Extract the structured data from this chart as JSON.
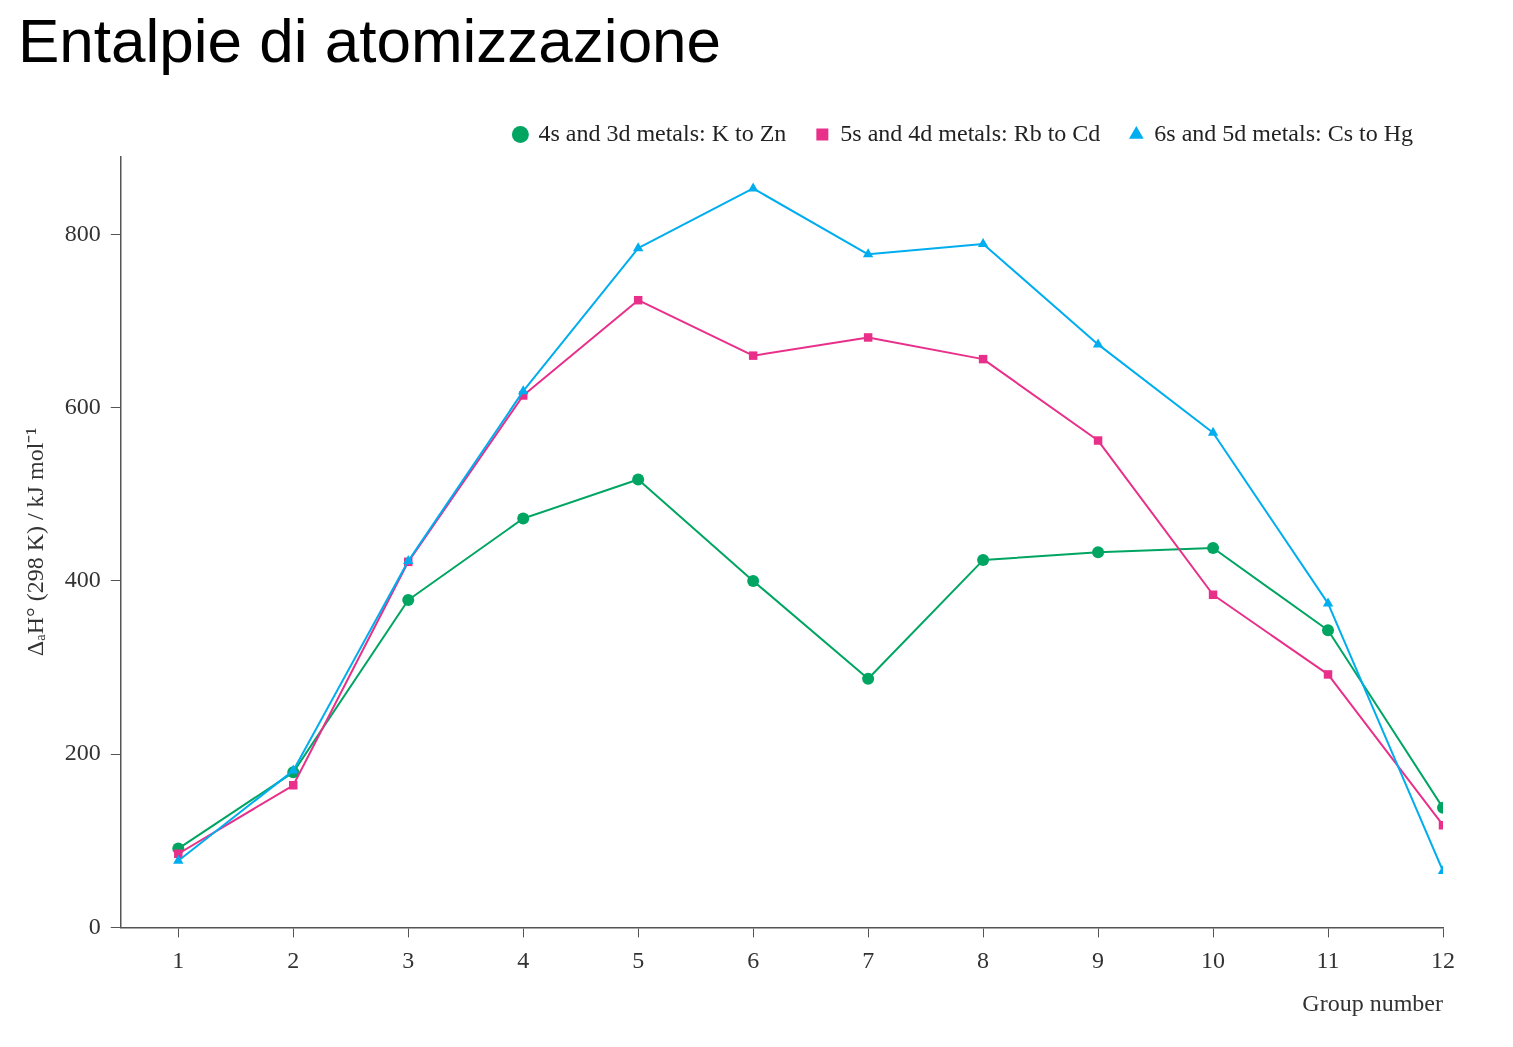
{
  "chart_data": {
    "type": "line",
    "title": "Entalpie di atomizzazione",
    "xlabel": "Group number",
    "ylabel": "ΔₐH° (298 K) / kJ mol⁻¹",
    "x": [
      1,
      2,
      3,
      4,
      5,
      6,
      7,
      8,
      9,
      10,
      11,
      12
    ],
    "series": [
      {
        "name": "4s and 3d metals: K to Zn",
        "color": "#00a562",
        "marker": "circle",
        "values": [
          91,
          179,
          378,
          472,
          517,
          400,
          287,
          424,
          433,
          438,
          343,
          138
        ]
      },
      {
        "name": "5s and 4d metals: Rb to Cd",
        "color": "#e8308a",
        "marker": "square",
        "values": [
          85,
          164,
          422,
          614,
          724,
          660,
          681,
          656,
          562,
          384,
          292,
          118
        ]
      },
      {
        "name": "6s and 5d metals: Cs to Hg",
        "color": "#00aeef",
        "marker": "triangle",
        "values": [
          77,
          181,
          423,
          619,
          784,
          853,
          777,
          789,
          673,
          571,
          374,
          65
        ]
      }
    ],
    "xlim": [
      0.5,
      12
    ],
    "xticks": [
      1,
      2,
      3,
      4,
      5,
      6,
      7,
      8,
      9,
      10,
      11,
      12
    ],
    "ylim": [
      0,
      890
    ],
    "yticks": [
      0,
      200,
      400,
      600,
      800
    ],
    "grid": false,
    "legend": "top right",
    "line_style": "solid"
  }
}
